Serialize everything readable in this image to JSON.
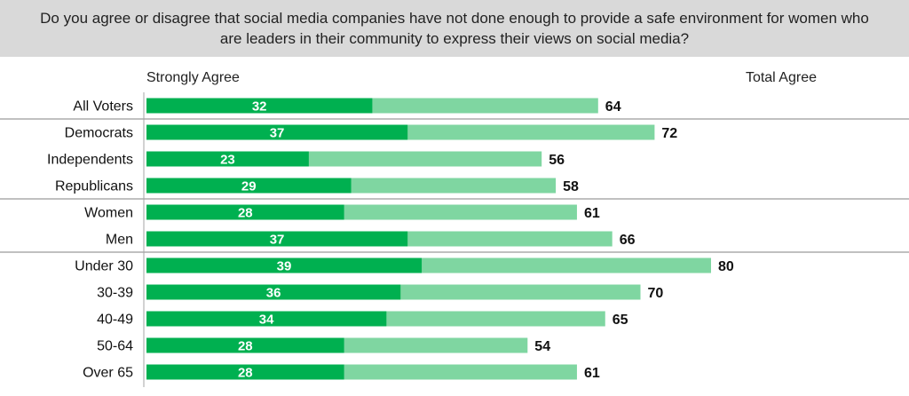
{
  "chart_data": {
    "type": "bar",
    "orientation": "horizontal",
    "title": "Do you agree or disagree that social media companies have not done enough to provide a safe environment for women who are leaders in their community to express their views on social media?",
    "series": [
      {
        "name": "Strongly Agree",
        "values": [
          32,
          37,
          23,
          29,
          28,
          37,
          39,
          36,
          34,
          28,
          28
        ]
      },
      {
        "name": "Total Agree",
        "values": [
          64,
          72,
          56,
          58,
          61,
          66,
          80,
          70,
          65,
          54,
          61
        ]
      }
    ],
    "categories": [
      "All Voters",
      "Democrats",
      "Independents",
      "Republicans",
      "Women",
      "Men",
      "Under 30",
      "30-39",
      "40-49",
      "50-64",
      "Over 65"
    ],
    "groups_end_after_index": [
      0,
      3,
      5
    ],
    "xlim": [
      0,
      100
    ],
    "grid": false,
    "colors": {
      "strongly_agree": "#00b050",
      "total_agree": "#7fd6a1",
      "separator": "#808080",
      "axis": "#a6a6a6"
    }
  }
}
